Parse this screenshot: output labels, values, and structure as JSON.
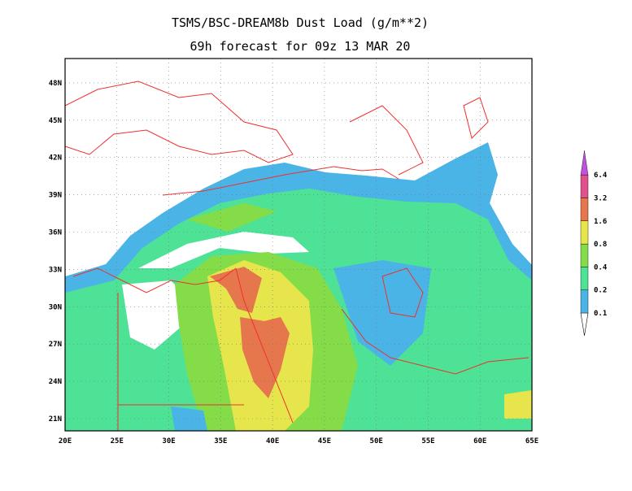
{
  "header": {
    "title": "TSMS/BSC-DREAM8b Dust Load (g/m**2)",
    "subtitle": "69h forecast for 09z 13 MAR 20"
  },
  "map": {
    "lon_labels": [
      "20E",
      "25E",
      "30E",
      "35E",
      "40E",
      "45E",
      "50E",
      "55E",
      "60E",
      "65E"
    ],
    "lat_labels": [
      "21N",
      "24N",
      "27N",
      "30N",
      "33N",
      "36N",
      "39N",
      "42N",
      "45N",
      "48N"
    ]
  },
  "legend": {
    "levels": [
      "0.1",
      "0.2",
      "0.4",
      "0.8",
      "1.6",
      "3.2",
      "6.4"
    ],
    "colors": [
      "#4bb4e6",
      "#4ee296",
      "#84dc48",
      "#e6e64c",
      "#e6764c",
      "#e0508c",
      "#c050e0"
    ]
  }
}
